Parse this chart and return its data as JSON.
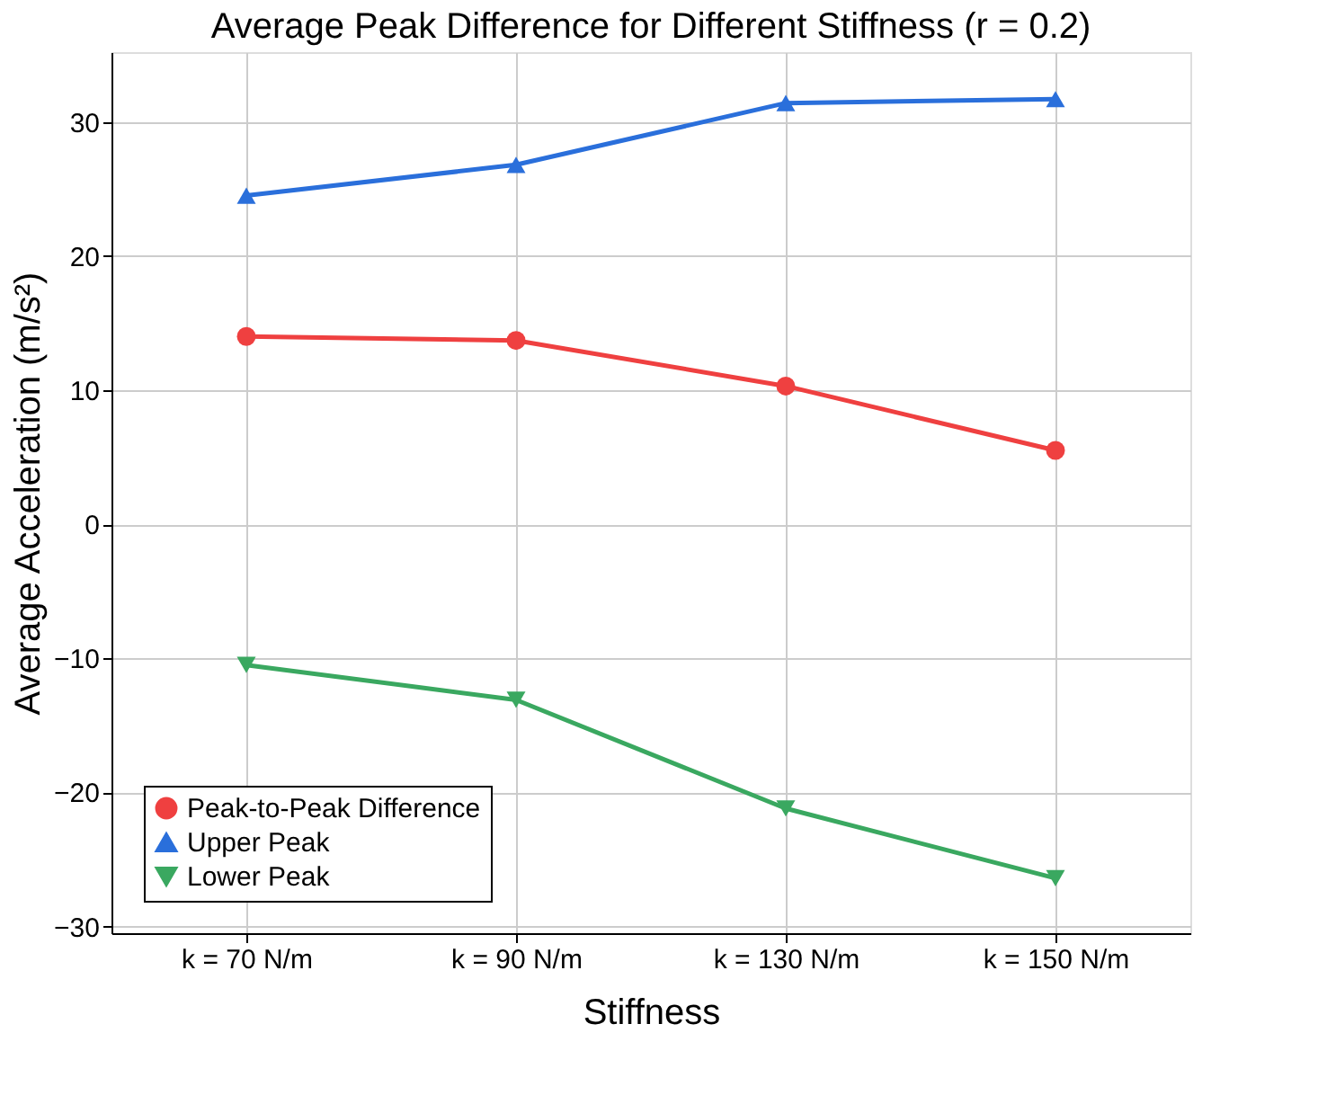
{
  "chart_data": {
    "type": "line",
    "title": "Average Peak Difference for Different Stiffness (r = 0.2)",
    "xlabel": "Stiffness",
    "ylabel": "Average Acceleration (m/s²)",
    "categories": [
      "k = 70 N/m",
      "k = 90 N/m",
      "k = 130 N/m",
      "k = 150 N/m"
    ],
    "series": [
      {
        "name": "Peak-to-Peak Difference",
        "color": "#ef4040",
        "marker": "circle",
        "values": [
          14.0,
          13.7,
          10.3,
          5.5
        ]
      },
      {
        "name": "Upper Peak",
        "color": "#2a6fdb",
        "marker": "triangle",
        "values": [
          24.5,
          26.8,
          31.4,
          31.7
        ]
      },
      {
        "name": "Lower Peak",
        "color": "#3aa860",
        "marker": "triangle-down",
        "values": [
          -10.5,
          -13.1,
          -21.2,
          -26.4
        ]
      }
    ],
    "ylim": [
      -30.5,
      35.2
    ],
    "yticks": [
      -30,
      -20,
      -10,
      0,
      10,
      20,
      30
    ],
    "grid": true,
    "legend": "bottom left",
    "line_style": "solid"
  }
}
